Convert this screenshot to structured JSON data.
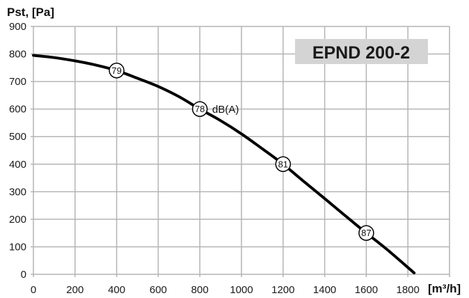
{
  "chart_data": {
    "type": "line",
    "title": "EPND 200-2",
    "xlabel": "[m³/h]",
    "ylabel": "Pst, [Pa]",
    "xlim": [
      0,
      2000
    ],
    "ylim": [
      0,
      900
    ],
    "x_ticks": [
      0,
      200,
      400,
      600,
      800,
      1000,
      1200,
      1400,
      1600,
      1800
    ],
    "y_ticks": [
      0,
      100,
      200,
      300,
      400,
      500,
      600,
      700,
      800,
      900
    ],
    "grid": true,
    "colors": {
      "curve": "#000000",
      "grid": "#b4b4b4",
      "title_box": "#d4d4d4"
    },
    "series": [
      {
        "x": [
          0,
          100,
          200,
          300,
          400,
          500,
          600,
          700,
          800,
          900,
          1000,
          1100,
          1200,
          1300,
          1400,
          1500,
          1600,
          1700,
          1830
        ],
        "y": [
          795,
          787,
          775,
          760,
          740,
          712,
          682,
          645,
          600,
          558,
          510,
          456,
          400,
          337,
          275,
          212,
          150,
          90,
          5
        ]
      }
    ],
    "annotations": [
      {
        "x": 400,
        "y": 740,
        "label": "79"
      },
      {
        "x": 800,
        "y": 600,
        "label": "78"
      },
      {
        "x": 1200,
        "y": 400,
        "label": "81"
      },
      {
        "x": 1600,
        "y": 150,
        "label": "87"
      }
    ],
    "annotation_unit": "dB(A)"
  }
}
